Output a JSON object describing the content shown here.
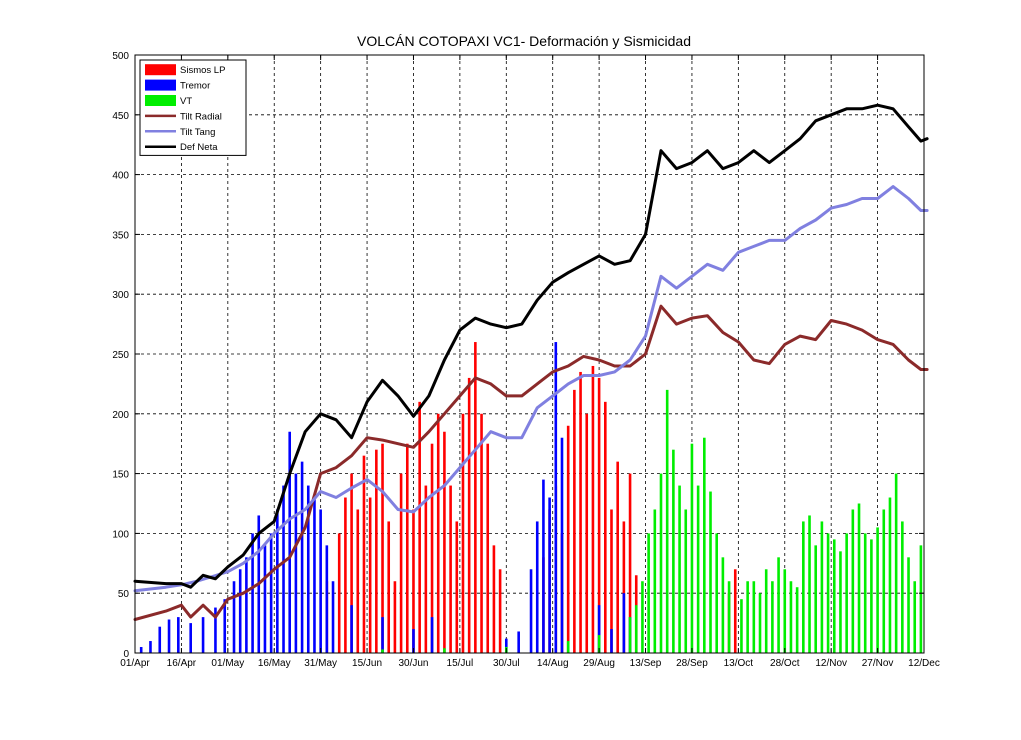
{
  "chart_data": {
    "type": "bar",
    "title": "VOLCÁN COTOPAXI VC1- Deformación y Sismicidad",
    "xlabel": "",
    "ylabel": "",
    "ylim": [
      0,
      500
    ],
    "xlim": [
      "01/Apr",
      "12/Dec"
    ],
    "grid": true,
    "legend_position": "top-left",
    "y_ticks": [
      "0",
      "50",
      "100",
      "150",
      "200",
      "250",
      "300",
      "350",
      "400",
      "450",
      "500"
    ],
    "x_ticks": [
      {
        "label": "01/Apr",
        "day": 0
      },
      {
        "label": "16/Apr",
        "day": 15
      },
      {
        "label": "01/May",
        "day": 30
      },
      {
        "label": "16/May",
        "day": 45
      },
      {
        "label": "31/May",
        "day": 60
      },
      {
        "label": "15/Jun",
        "day": 75
      },
      {
        "label": "30/Jun",
        "day": 90
      },
      {
        "label": "15/Jul",
        "day": 105
      },
      {
        "label": "30/Jul",
        "day": 120
      },
      {
        "label": "14/Aug",
        "day": 135
      },
      {
        "label": "29/Aug",
        "day": 150
      },
      {
        "label": "13/Sep",
        "day": 165
      },
      {
        "label": "28/Sep",
        "day": 180
      },
      {
        "label": "13/Oct",
        "day": 195
      },
      {
        "label": "28/Oct",
        "day": 210
      },
      {
        "label": "12/Nov",
        "day": 225
      },
      {
        "label": "27/Nov",
        "day": 240
      },
      {
        "label": "12/Dec",
        "day": 255
      }
    ],
    "x_unit": "days since 01/Apr",
    "bar_series": [
      {
        "name": "Sismos LP",
        "color": "#ff0000",
        "points": [
          [
            62,
            60
          ],
          [
            66,
            100
          ],
          [
            68,
            130
          ],
          [
            70,
            150
          ],
          [
            72,
            120
          ],
          [
            74,
            165
          ],
          [
            76,
            130
          ],
          [
            78,
            170
          ],
          [
            80,
            175
          ],
          [
            82,
            110
          ],
          [
            84,
            60
          ],
          [
            86,
            150
          ],
          [
            88,
            175
          ],
          [
            90,
            120
          ],
          [
            92,
            210
          ],
          [
            94,
            140
          ],
          [
            96,
            175
          ],
          [
            98,
            200
          ],
          [
            100,
            185
          ],
          [
            102,
            140
          ],
          [
            104,
            110
          ],
          [
            106,
            200
          ],
          [
            108,
            230
          ],
          [
            110,
            260
          ],
          [
            112,
            200
          ],
          [
            114,
            175
          ],
          [
            116,
            90
          ],
          [
            118,
            70
          ],
          [
            132,
            80
          ],
          [
            134,
            120
          ],
          [
            136,
            140
          ],
          [
            138,
            100
          ],
          [
            140,
            190
          ],
          [
            142,
            220
          ],
          [
            144,
            235
          ],
          [
            146,
            200
          ],
          [
            148,
            240
          ],
          [
            150,
            230
          ],
          [
            152,
            210
          ],
          [
            154,
            120
          ],
          [
            156,
            160
          ],
          [
            158,
            110
          ],
          [
            160,
            150
          ],
          [
            162,
            65
          ],
          [
            192,
            50
          ],
          [
            194,
            70
          ]
        ]
      },
      {
        "name": "Tremor",
        "color": "#0000ff",
        "points": [
          [
            2,
            5
          ],
          [
            5,
            10
          ],
          [
            8,
            22
          ],
          [
            11,
            28
          ],
          [
            14,
            30
          ],
          [
            18,
            25
          ],
          [
            22,
            30
          ],
          [
            26,
            38
          ],
          [
            29,
            45
          ],
          [
            32,
            60
          ],
          [
            34,
            70
          ],
          [
            36,
            80
          ],
          [
            38,
            100
          ],
          [
            40,
            115
          ],
          [
            42,
            90
          ],
          [
            44,
            100
          ],
          [
            46,
            120
          ],
          [
            48,
            140
          ],
          [
            50,
            185
          ],
          [
            52,
            150
          ],
          [
            54,
            160
          ],
          [
            56,
            140
          ],
          [
            58,
            130
          ],
          [
            60,
            120
          ],
          [
            62,
            90
          ],
          [
            64,
            60
          ],
          [
            70,
            40
          ],
          [
            80,
            30
          ],
          [
            90,
            20
          ],
          [
            96,
            30
          ],
          [
            120,
            12
          ],
          [
            124,
            18
          ],
          [
            128,
            70
          ],
          [
            130,
            110
          ],
          [
            132,
            145
          ],
          [
            134,
            130
          ],
          [
            136,
            260
          ],
          [
            138,
            180
          ],
          [
            150,
            40
          ],
          [
            154,
            20
          ],
          [
            158,
            50
          ],
          [
            160,
            30
          ]
        ]
      },
      {
        "name": "VT",
        "color": "#00ee00",
        "points": [
          [
            80,
            3
          ],
          [
            100,
            4
          ],
          [
            120,
            5
          ],
          [
            140,
            10
          ],
          [
            150,
            15
          ],
          [
            160,
            30
          ],
          [
            162,
            40
          ],
          [
            164,
            60
          ],
          [
            166,
            100
          ],
          [
            168,
            120
          ],
          [
            170,
            150
          ],
          [
            172,
            220
          ],
          [
            174,
            170
          ],
          [
            176,
            140
          ],
          [
            178,
            120
          ],
          [
            180,
            175
          ],
          [
            182,
            140
          ],
          [
            184,
            180
          ],
          [
            186,
            135
          ],
          [
            188,
            100
          ],
          [
            190,
            80
          ],
          [
            192,
            60
          ],
          [
            196,
            45
          ],
          [
            198,
            60
          ],
          [
            200,
            60
          ],
          [
            202,
            50
          ],
          [
            204,
            70
          ],
          [
            206,
            60
          ],
          [
            208,
            80
          ],
          [
            210,
            70
          ],
          [
            212,
            60
          ],
          [
            214,
            55
          ],
          [
            216,
            110
          ],
          [
            218,
            115
          ],
          [
            220,
            90
          ],
          [
            222,
            110
          ],
          [
            224,
            100
          ],
          [
            226,
            95
          ],
          [
            228,
            85
          ],
          [
            230,
            100
          ],
          [
            232,
            120
          ],
          [
            234,
            125
          ],
          [
            236,
            100
          ],
          [
            238,
            95
          ],
          [
            240,
            105
          ],
          [
            242,
            120
          ],
          [
            244,
            130
          ],
          [
            246,
            150
          ],
          [
            248,
            110
          ],
          [
            250,
            80
          ],
          [
            252,
            60
          ],
          [
            254,
            90
          ]
        ]
      }
    ],
    "line_series": [
      {
        "name": "Tilt Radial",
        "color": "#8b2a2a",
        "points": [
          [
            0,
            28
          ],
          [
            10,
            35
          ],
          [
            15,
            40
          ],
          [
            18,
            30
          ],
          [
            22,
            40
          ],
          [
            26,
            30
          ],
          [
            30,
            45
          ],
          [
            35,
            50
          ],
          [
            40,
            58
          ],
          [
            45,
            70
          ],
          [
            50,
            80
          ],
          [
            55,
            105
          ],
          [
            60,
            150
          ],
          [
            65,
            155
          ],
          [
            70,
            165
          ],
          [
            75,
            180
          ],
          [
            80,
            178
          ],
          [
            85,
            175
          ],
          [
            90,
            172
          ],
          [
            95,
            185
          ],
          [
            100,
            200
          ],
          [
            105,
            215
          ],
          [
            110,
            230
          ],
          [
            115,
            225
          ],
          [
            120,
            215
          ],
          [
            125,
            215
          ],
          [
            130,
            225
          ],
          [
            135,
            235
          ],
          [
            140,
            240
          ],
          [
            145,
            248
          ],
          [
            150,
            245
          ],
          [
            155,
            240
          ],
          [
            160,
            240
          ],
          [
            165,
            250
          ],
          [
            170,
            290
          ],
          [
            175,
            275
          ],
          [
            180,
            280
          ],
          [
            185,
            282
          ],
          [
            190,
            268
          ],
          [
            195,
            260
          ],
          [
            200,
            245
          ],
          [
            205,
            242
          ],
          [
            210,
            258
          ],
          [
            215,
            265
          ],
          [
            220,
            262
          ],
          [
            225,
            278
          ],
          [
            230,
            275
          ],
          [
            235,
            270
          ],
          [
            240,
            262
          ],
          [
            245,
            258
          ],
          [
            250,
            245
          ],
          [
            254,
            237
          ],
          [
            256,
            237
          ]
        ]
      },
      {
        "name": "Tilt Tang",
        "color": "#8080e0",
        "points": [
          [
            0,
            52
          ],
          [
            10,
            55
          ],
          [
            15,
            57
          ],
          [
            20,
            60
          ],
          [
            25,
            64
          ],
          [
            30,
            68
          ],
          [
            35,
            75
          ],
          [
            40,
            85
          ],
          [
            45,
            100
          ],
          [
            50,
            112
          ],
          [
            55,
            120
          ],
          [
            60,
            135
          ],
          [
            65,
            130
          ],
          [
            70,
            138
          ],
          [
            75,
            145
          ],
          [
            80,
            135
          ],
          [
            85,
            120
          ],
          [
            90,
            118
          ],
          [
            95,
            130
          ],
          [
            100,
            140
          ],
          [
            105,
            155
          ],
          [
            110,
            170
          ],
          [
            115,
            185
          ],
          [
            120,
            180
          ],
          [
            125,
            180
          ],
          [
            130,
            205
          ],
          [
            135,
            215
          ],
          [
            140,
            225
          ],
          [
            145,
            232
          ],
          [
            150,
            232
          ],
          [
            155,
            235
          ],
          [
            160,
            245
          ],
          [
            165,
            265
          ],
          [
            170,
            315
          ],
          [
            175,
            305
          ],
          [
            180,
            315
          ],
          [
            185,
            325
          ],
          [
            190,
            320
          ],
          [
            195,
            335
          ],
          [
            200,
            340
          ],
          [
            205,
            345
          ],
          [
            210,
            345
          ],
          [
            215,
            355
          ],
          [
            220,
            362
          ],
          [
            225,
            372
          ],
          [
            230,
            375
          ],
          [
            235,
            380
          ],
          [
            240,
            380
          ],
          [
            245,
            390
          ],
          [
            250,
            380
          ],
          [
            254,
            370
          ],
          [
            256,
            370
          ]
        ]
      },
      {
        "name": "Def Neta",
        "color": "#000000",
        "points": [
          [
            0,
            60
          ],
          [
            10,
            58
          ],
          [
            15,
            58
          ],
          [
            18,
            55
          ],
          [
            22,
            65
          ],
          [
            26,
            62
          ],
          [
            30,
            72
          ],
          [
            35,
            82
          ],
          [
            40,
            100
          ],
          [
            45,
            110
          ],
          [
            50,
            150
          ],
          [
            55,
            185
          ],
          [
            60,
            200
          ],
          [
            65,
            195
          ],
          [
            70,
            180
          ],
          [
            75,
            210
          ],
          [
            80,
            228
          ],
          [
            85,
            215
          ],
          [
            90,
            198
          ],
          [
            95,
            215
          ],
          [
            100,
            245
          ],
          [
            105,
            270
          ],
          [
            110,
            280
          ],
          [
            115,
            275
          ],
          [
            120,
            272
          ],
          [
            125,
            275
          ],
          [
            130,
            295
          ],
          [
            135,
            310
          ],
          [
            140,
            318
          ],
          [
            145,
            325
          ],
          [
            150,
            332
          ],
          [
            155,
            325
          ],
          [
            160,
            328
          ],
          [
            165,
            350
          ],
          [
            170,
            420
          ],
          [
            175,
            405
          ],
          [
            180,
            410
          ],
          [
            185,
            420
          ],
          [
            190,
            405
          ],
          [
            195,
            410
          ],
          [
            200,
            420
          ],
          [
            205,
            410
          ],
          [
            210,
            420
          ],
          [
            215,
            430
          ],
          [
            220,
            445
          ],
          [
            225,
            450
          ],
          [
            230,
            455
          ],
          [
            235,
            455
          ],
          [
            240,
            458
          ],
          [
            245,
            455
          ],
          [
            250,
            440
          ],
          [
            254,
            428
          ],
          [
            256,
            430
          ]
        ]
      }
    ]
  }
}
